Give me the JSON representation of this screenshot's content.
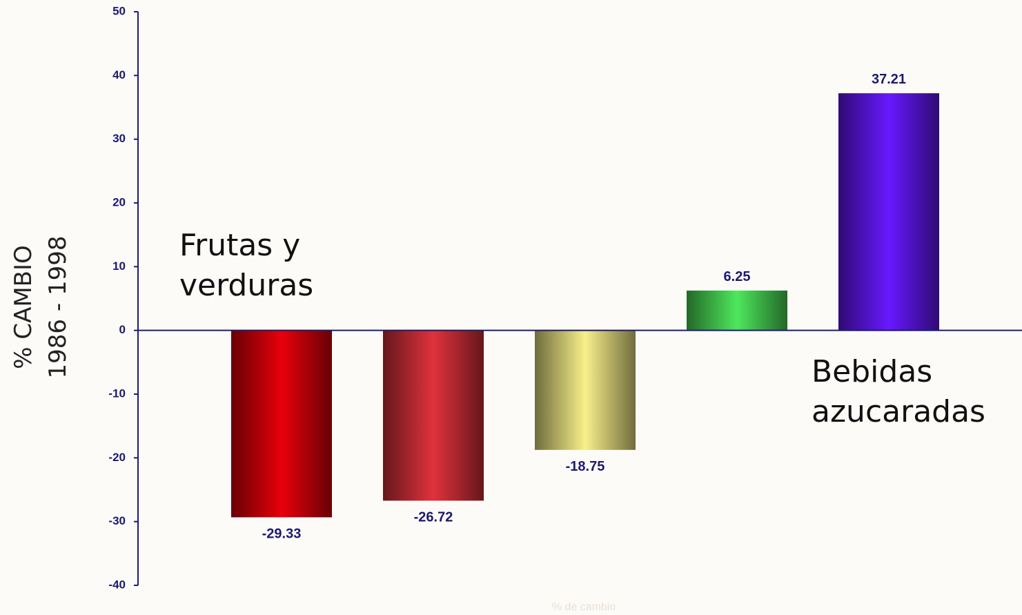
{
  "chart_data": {
    "type": "bar",
    "categories": [
      null,
      null,
      null,
      null,
      null
    ],
    "values": [
      -29.33,
      -26.72,
      -18.75,
      6.25,
      37.21
    ],
    "colors": [
      "#e8000a",
      "#e0323c",
      "#f8f08a",
      "#4ee85c",
      "#6818ff"
    ],
    "ylim": [
      -40,
      50
    ],
    "yticks": [
      -40,
      -30,
      -20,
      -10,
      0,
      10,
      20,
      30,
      40,
      50
    ],
    "ylabel": [
      "% CAMBIO",
      "1986 - 1998"
    ],
    "xlabel": "% de cambio",
    "annotations": [
      [
        "Frutas y",
        "verduras"
      ],
      [
        "Bebidas",
        "azucaradas"
      ]
    ]
  }
}
